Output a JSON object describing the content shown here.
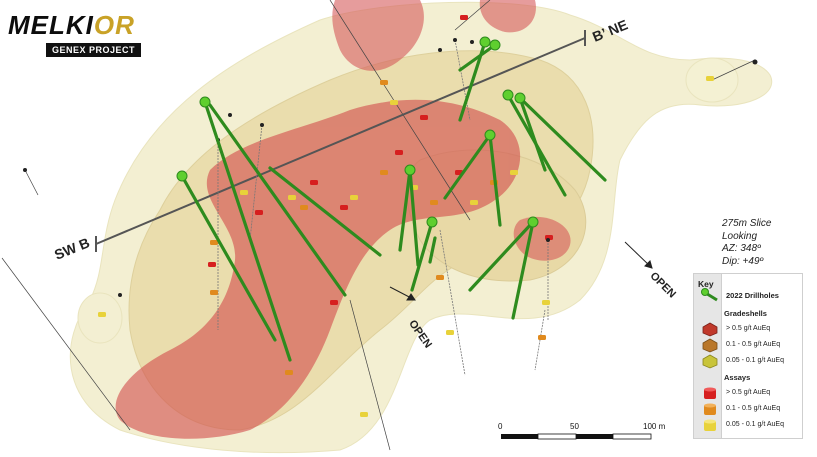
{
  "logo": {
    "name_left": "MELKI",
    "name_right": "OR",
    "project": "GENEX PROJECT"
  },
  "section": {
    "left_label": "SW B",
    "right_label": "B’ NE"
  },
  "open_labels": [
    "OPEN",
    "OPEN"
  ],
  "slice_info": [
    "275m Slice",
    "Looking",
    "AZ: 348º",
    "Dip: +49º"
  ],
  "legend": {
    "title": "Key",
    "drillholes": "2022 Drillholes",
    "gradeshells_title": "Gradeshells",
    "gradeshells": [
      {
        "label": "> 0.5 g/t AuEq",
        "color": "#c0392b"
      },
      {
        "label": "0.1 - 0.5 g/t AuEq",
        "color": "#b9772a"
      },
      {
        "label": "0.05 - 0.1 g/t AuEq",
        "color": "#c8c43a"
      }
    ],
    "assays_title": "Assays",
    "assays": [
      {
        "label": "> 0.5 g/t AuEq",
        "color": "#d61f1f"
      },
      {
        "label": "0.1 - 0.5 g/t AuEq",
        "color": "#e08a1e"
      },
      {
        "label": "0.05 - 0.1 g/t AuEq",
        "color": "#e8d23a"
      }
    ]
  },
  "scale_bar": {
    "ticks": [
      "0",
      "50",
      "100 m"
    ]
  },
  "colors": {
    "drillhole": "#2e8b1e",
    "drillhole_collar": "#5fcf2f",
    "high_shell": "#d24b4b",
    "mid_shell": "#e0c07a",
    "low_shell": "#ece6b0"
  }
}
